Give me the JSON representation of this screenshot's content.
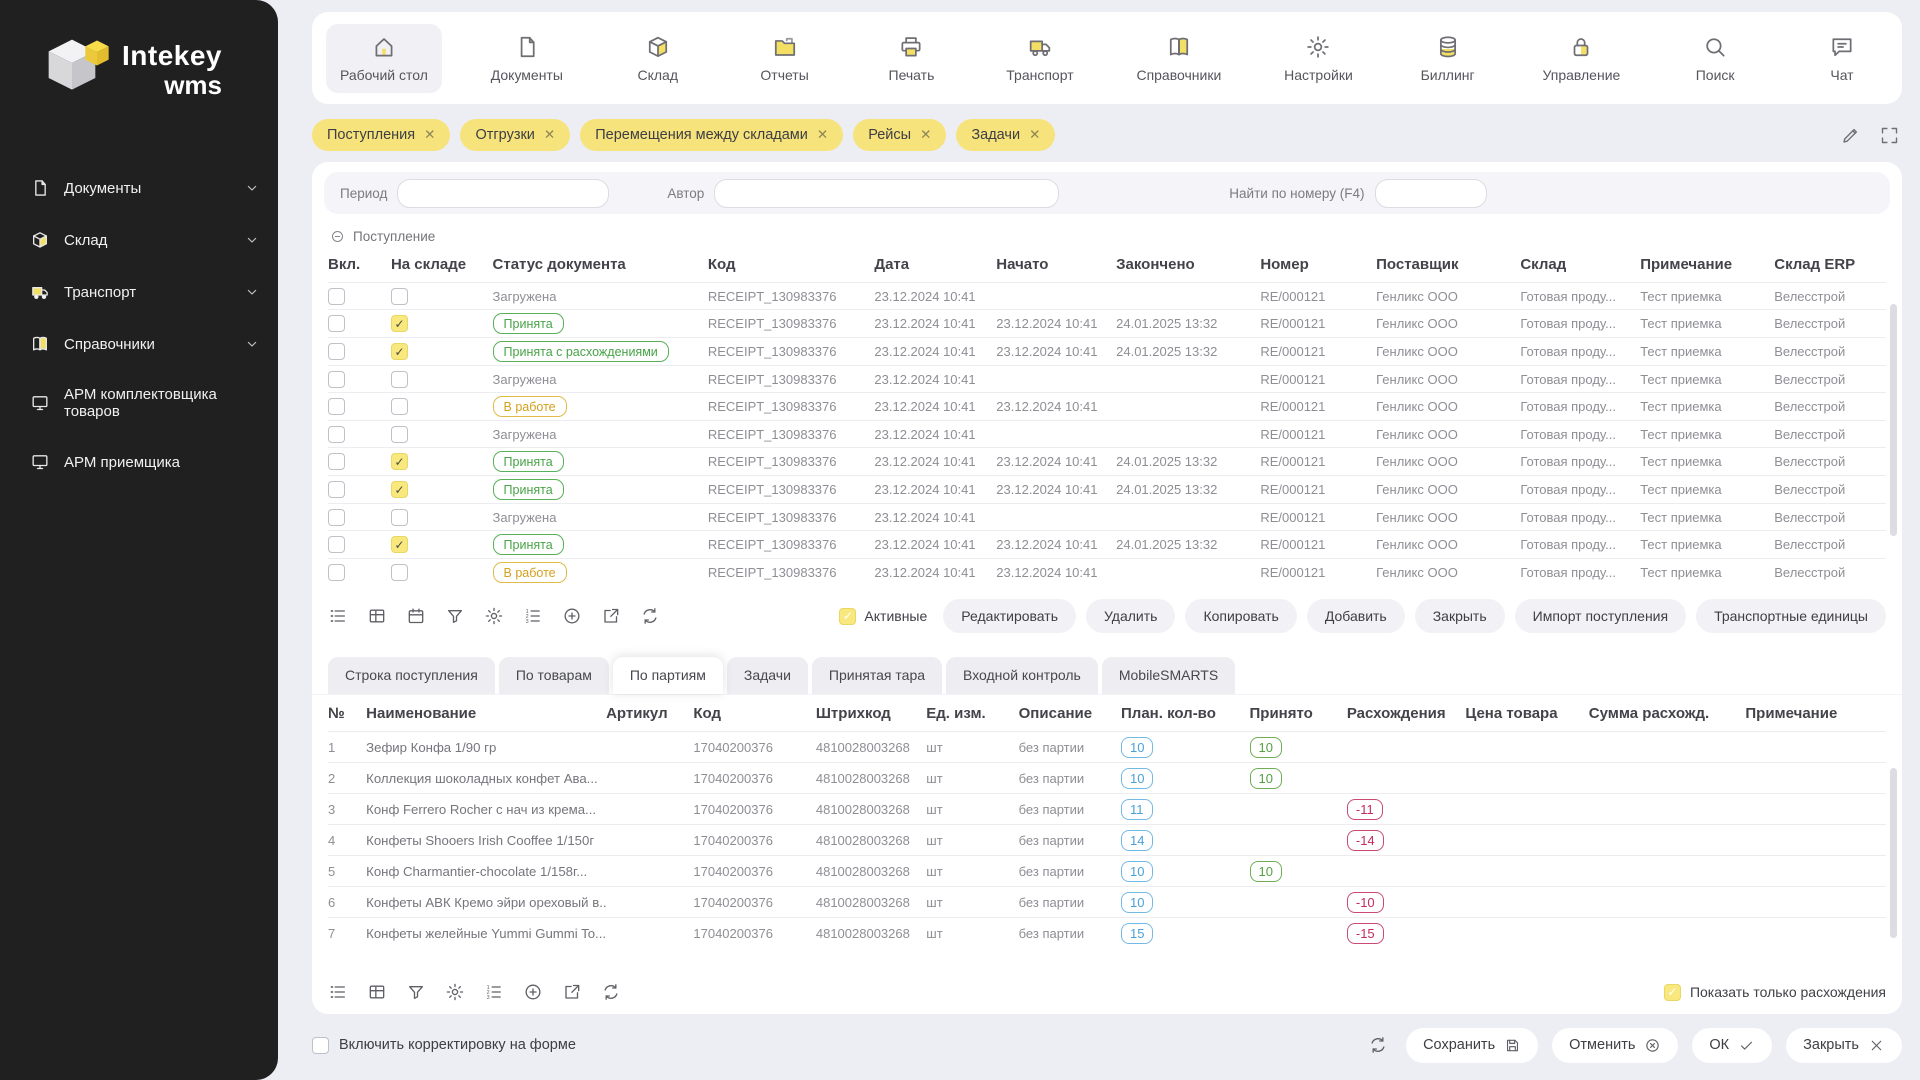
{
  "app": {
    "brand": "Intekey",
    "brand_sub": "wms"
  },
  "topnav": {
    "items": [
      {
        "id": "desktop",
        "label": "Рабочий стол",
        "icon": "home",
        "selected": true
      },
      {
        "id": "documents",
        "label": "Документы",
        "icon": "document",
        "selected": false
      },
      {
        "id": "warehouse",
        "label": "Склад",
        "icon": "box",
        "selected": false
      },
      {
        "id": "reports",
        "label": "Отчеты",
        "icon": "folder",
        "selected": false
      },
      {
        "id": "print",
        "label": "Печать",
        "icon": "printer",
        "selected": false
      },
      {
        "id": "transport",
        "label": "Транспорт",
        "icon": "truck",
        "selected": false
      },
      {
        "id": "references",
        "label": "Справочники",
        "icon": "book",
        "selected": false
      },
      {
        "id": "settings",
        "label": "Настройки",
        "icon": "gear",
        "selected": false
      },
      {
        "id": "billing",
        "label": "Биллинг",
        "icon": "database",
        "selected": false
      },
      {
        "id": "management",
        "label": "Управление",
        "icon": "lock",
        "selected": false
      },
      {
        "id": "search",
        "label": "Поиск",
        "icon": "search",
        "selected": false
      },
      {
        "id": "chat",
        "label": "Чат",
        "icon": "chat",
        "selected": false
      }
    ]
  },
  "sidebar": {
    "items": [
      {
        "label": "Документы",
        "icon": "document",
        "chevron": true
      },
      {
        "label": "Склад",
        "icon": "box",
        "chevron": true
      },
      {
        "label": "Транспорт",
        "icon": "truck",
        "chevron": true
      },
      {
        "label": "Справочники",
        "icon": "book",
        "chevron": true
      },
      {
        "label": "АРМ комплектовщика товаров",
        "icon": "monitor",
        "chevron": false
      },
      {
        "label": "АРМ приемщика",
        "icon": "monitor",
        "chevron": false
      }
    ]
  },
  "filters": {
    "tags": [
      "Поступления",
      "Отгрузки",
      "Перемещения между складами",
      "Рейсы",
      "Задачи"
    ]
  },
  "search": {
    "period_label": "Период",
    "author_label": "Автор",
    "number_label": "Найти по номеру (F4)",
    "period_value": "",
    "author_value": "",
    "number_value": ""
  },
  "receipts": {
    "group_label": "Поступление",
    "columns": [
      "Вкл.",
      "На складе",
      "Статус документа",
      "Код",
      "Дата",
      "Начато",
      "Закончено",
      "Номер",
      "Поставщик",
      "Склад",
      "Примечание",
      "Склад ERP"
    ],
    "rows": [
      {
        "enabled": false,
        "on_stock": false,
        "status": "Загружена",
        "status_type": "plain",
        "code": "RECEIPT_130983376",
        "date": "23.12.2024 10:41",
        "started": "",
        "finished": "",
        "number": "RE/000121",
        "supplier": "Генликс ООО",
        "warehouse": "Готовая проду...",
        "note": "Тест приемка",
        "erp": "Велесстрой"
      },
      {
        "enabled": false,
        "on_stock": true,
        "status": "Принята",
        "status_type": "green",
        "code": "RECEIPT_130983376",
        "date": "23.12.2024 10:41",
        "started": "23.12.2024 10:41",
        "finished": "24.01.2025 13:32",
        "number": "RE/000121",
        "supplier": "Генликс ООО",
        "warehouse": "Готовая проду...",
        "note": "Тест приемка",
        "erp": "Велесстрой"
      },
      {
        "enabled": false,
        "on_stock": true,
        "status": "Принята с расхождениями",
        "status_type": "green",
        "code": "RECEIPT_130983376",
        "date": "23.12.2024 10:41",
        "started": "23.12.2024 10:41",
        "finished": "24.01.2025 13:32",
        "number": "RE/000121",
        "supplier": "Генликс ООО",
        "warehouse": "Готовая проду...",
        "note": "Тест приемка",
        "erp": "Велесстрой"
      },
      {
        "enabled": false,
        "on_stock": false,
        "status": "Загружена",
        "status_type": "plain",
        "code": "RECEIPT_130983376",
        "date": "23.12.2024 10:41",
        "started": "",
        "finished": "",
        "number": "RE/000121",
        "supplier": "Генликс ООО",
        "warehouse": "Готовая проду...",
        "note": "Тест приемка",
        "erp": "Велесстрой"
      },
      {
        "enabled": false,
        "on_stock": false,
        "status": "В работе",
        "status_type": "yellow",
        "code": "RECEIPT_130983376",
        "date": "23.12.2024 10:41",
        "started": "23.12.2024 10:41",
        "finished": "",
        "number": "RE/000121",
        "supplier": "Генликс ООО",
        "warehouse": "Готовая проду...",
        "note": "Тест приемка",
        "erp": "Велесстрой"
      },
      {
        "enabled": false,
        "on_stock": false,
        "status": "Загружена",
        "status_type": "plain",
        "code": "RECEIPT_130983376",
        "date": "23.12.2024 10:41",
        "started": "",
        "finished": "",
        "number": "RE/000121",
        "supplier": "Генликс ООО",
        "warehouse": "Готовая проду...",
        "note": "Тест приемка",
        "erp": "Велесстрой"
      },
      {
        "enabled": false,
        "on_stock": true,
        "status": "Принята",
        "status_type": "green",
        "code": "RECEIPT_130983376",
        "date": "23.12.2024 10:41",
        "started": "23.12.2024 10:41",
        "finished": "24.01.2025 13:32",
        "number": "RE/000121",
        "supplier": "Генликс ООО",
        "warehouse": "Готовая проду...",
        "note": "Тест приемка",
        "erp": "Велесстрой"
      },
      {
        "enabled": false,
        "on_stock": true,
        "status": "Принята",
        "status_type": "green",
        "code": "RECEIPT_130983376",
        "date": "23.12.2024 10:41",
        "started": "23.12.2024 10:41",
        "finished": "24.01.2025 13:32",
        "number": "RE/000121",
        "supplier": "Генликс ООО",
        "warehouse": "Готовая проду...",
        "note": "Тест приемка",
        "erp": "Велесстрой"
      },
      {
        "enabled": false,
        "on_stock": false,
        "status": "Загружена",
        "status_type": "plain",
        "code": "RECEIPT_130983376",
        "date": "23.12.2024 10:41",
        "started": "",
        "finished": "",
        "number": "RE/000121",
        "supplier": "Генликс ООО",
        "warehouse": "Готовая проду...",
        "note": "Тест приемка",
        "erp": "Велесстрой"
      },
      {
        "enabled": false,
        "on_stock": true,
        "status": "Принята",
        "status_type": "green",
        "code": "RECEIPT_130983376",
        "date": "23.12.2024 10:41",
        "started": "23.12.2024 10:41",
        "finished": "24.01.2025 13:32",
        "number": "RE/000121",
        "supplier": "Генликс ООО",
        "warehouse": "Готовая проду...",
        "note": "Тест приемка",
        "erp": "Велесстрой"
      },
      {
        "enabled": false,
        "on_stock": false,
        "status": "В работе",
        "status_type": "yellow",
        "code": "RECEIPT_130983376",
        "date": "23.12.2024 10:41",
        "started": "23.12.2024 10:41",
        "finished": "",
        "number": "RE/000121",
        "supplier": "Генликс ООО",
        "warehouse": "Готовая проду...",
        "note": "Тест приемка",
        "erp": "Велесстрой"
      }
    ],
    "toolbar_icons": [
      "list",
      "table",
      "calendar",
      "filter",
      "gear",
      "numbered-list",
      "plus-circle",
      "external-link",
      "refresh"
    ],
    "active_label": "Активные",
    "active_checked": true,
    "buttons": [
      "Редактировать",
      "Удалить",
      "Копировать",
      "Добавить",
      "Закрыть",
      "Импорт поступления",
      "Транспортные единицы"
    ]
  },
  "tabs": {
    "items": [
      "Строка поступления",
      "По товарам",
      "По партиям",
      "Задачи",
      "Принятая тара",
      "Входной контроль",
      "MobileSMARTS"
    ],
    "selected": "По партиям"
  },
  "details": {
    "columns": [
      "№",
      "Наименование",
      "Артикул",
      "Код",
      "Штрихкод",
      "Ед. изм.",
      "Описание",
      "План. кол-во",
      "Принято",
      "Расхождения",
      "Цена товара",
      "Сумма расхожд.",
      "Примечание"
    ],
    "rows": [
      {
        "num": "1",
        "name": "Зефир Конфа 1/90 гр",
        "article": "",
        "code": "17040200376",
        "barcode": "4810028003268",
        "unit": "шт",
        "description": "без партии",
        "plan": "10",
        "accepted": "10",
        "discrepancy": "",
        "price": "",
        "sum": "",
        "note": ""
      },
      {
        "num": "2",
        "name": "Коллекция шоколадных конфет Ава...",
        "article": "",
        "code": "17040200376",
        "barcode": "4810028003268",
        "unit": "шт",
        "description": "без партии",
        "plan": "10",
        "accepted": "10",
        "discrepancy": "",
        "price": "",
        "sum": "",
        "note": ""
      },
      {
        "num": "3",
        "name": "Конф Ferrero Rocher с нач из крема...",
        "article": "",
        "code": "17040200376",
        "barcode": "4810028003268",
        "unit": "шт",
        "description": "без партии",
        "plan": "11",
        "accepted": "",
        "discrepancy": "-11",
        "price": "",
        "sum": "",
        "note": ""
      },
      {
        "num": "4",
        "name": "Конфеты Shooers Irish Cooffee 1/150г",
        "article": "",
        "code": "17040200376",
        "barcode": "4810028003268",
        "unit": "шт",
        "description": "без партии",
        "plan": "14",
        "accepted": "",
        "discrepancy": "-14",
        "price": "",
        "sum": "",
        "note": ""
      },
      {
        "num": "5",
        "name": "Конф Charmantier-chocolate 1/158г...",
        "article": "",
        "code": "17040200376",
        "barcode": "4810028003268",
        "unit": "шт",
        "description": "без партии",
        "plan": "10",
        "accepted": "10",
        "discrepancy": "",
        "price": "",
        "sum": "",
        "note": ""
      },
      {
        "num": "6",
        "name": "Конфеты АВК Кремо эйри ореховый в...",
        "article": "",
        "code": "17040200376",
        "barcode": "4810028003268",
        "unit": "шт",
        "description": "без партии",
        "plan": "10",
        "accepted": "",
        "discrepancy": "-10",
        "price": "",
        "sum": "",
        "note": ""
      },
      {
        "num": "7",
        "name": "Конфеты желейные Yummi Gummi To...",
        "article": "",
        "code": "17040200376",
        "barcode": "4810028003268",
        "unit": "шт",
        "description": "без партии",
        "plan": "15",
        "accepted": "",
        "discrepancy": "-15",
        "price": "",
        "sum": "",
        "note": ""
      }
    ],
    "toolbar_icons": [
      "list",
      "table",
      "filter",
      "gear",
      "numbered-list",
      "plus-circle",
      "external-link",
      "refresh"
    ],
    "show_only_label": "Показать только расхождения",
    "show_only_checked": true
  },
  "footer": {
    "correction_label": "Включить корректировку на форме",
    "correction_checked": false,
    "buttons": [
      {
        "id": "save",
        "label": "Сохранить",
        "icon": "floppy"
      },
      {
        "id": "cancel",
        "label": "Отменить",
        "icon": "circle-x"
      },
      {
        "id": "ok",
        "label": "ОК",
        "icon": "check"
      },
      {
        "id": "close",
        "label": "Закрыть",
        "icon": "x"
      }
    ]
  },
  "colors": {
    "accent_yellow": "#f7e37c",
    "status_accepted_green": "#47a447",
    "status_inprogress_yellow": "#d3a11c",
    "qty_plan_blue": "#4aa0d8",
    "qty_accepted_green": "#55a043",
    "qty_discrepancy_red": "#c42b5e",
    "sidebar_bg": "#202020",
    "page_bg": "#edeef4"
  }
}
